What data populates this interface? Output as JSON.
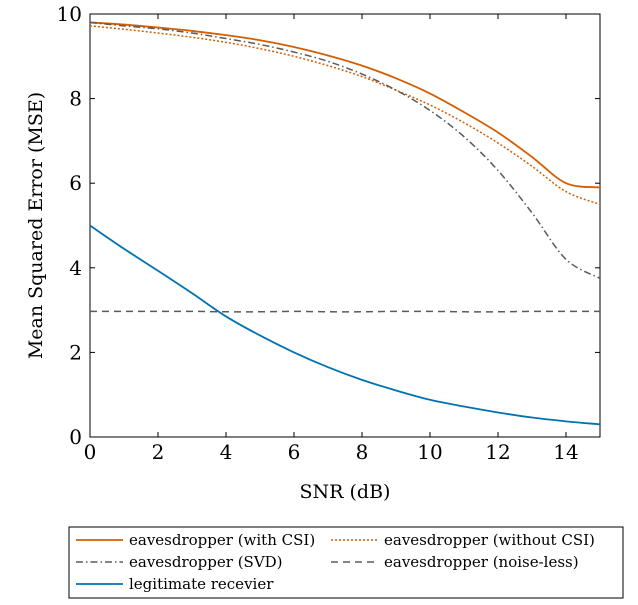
{
  "chart_data": {
    "type": "line",
    "title": "",
    "xlabel": "SNR (dB)",
    "ylabel": "Mean Squared Error (MSE)",
    "xlim": [
      0,
      15
    ],
    "ylim": [
      0,
      10
    ],
    "xticks": [
      0,
      2,
      4,
      6,
      8,
      10,
      12,
      14
    ],
    "yticks": [
      0,
      2,
      4,
      6,
      8,
      10
    ],
    "grid": false,
    "legend_position": "below",
    "x": [
      0,
      1,
      2,
      3,
      4,
      5,
      6,
      7,
      8,
      9,
      10,
      11,
      12,
      13,
      14,
      15
    ],
    "series": [
      {
        "name": "eavesdropper (with CSI)",
        "color": "#d55e00",
        "style": "solid",
        "values": [
          9.8,
          9.75,
          9.68,
          9.6,
          9.5,
          9.38,
          9.22,
          9.02,
          8.78,
          8.48,
          8.12,
          7.68,
          7.2,
          6.62,
          6.0,
          5.9
        ]
      },
      {
        "name": "eavesdropper (without CSI)",
        "color": "#d55e00",
        "style": "dotted",
        "values": [
          9.72,
          9.64,
          9.55,
          9.45,
          9.33,
          9.18,
          9.0,
          8.78,
          8.52,
          8.2,
          7.85,
          7.43,
          6.95,
          6.4,
          5.8,
          5.5
        ]
      },
      {
        "name": "eavesdropper (SVD)",
        "color": "#5a5a5a",
        "style": "dashdot",
        "values": [
          9.8,
          9.72,
          9.65,
          9.55,
          9.42,
          9.28,
          9.1,
          8.88,
          8.58,
          8.2,
          7.72,
          7.1,
          6.3,
          5.3,
          4.2,
          3.75
        ]
      },
      {
        "name": "eavesdropper (noise-less)",
        "color": "#5a5a5a",
        "style": "dashed",
        "values": [
          2.97,
          2.97,
          2.97,
          2.97,
          2.96,
          2.96,
          2.97,
          2.96,
          2.96,
          2.97,
          2.97,
          2.96,
          2.96,
          2.97,
          2.97,
          2.97
        ]
      },
      {
        "name": "legitimate recevier",
        "color": "#0072b2",
        "style": "solid",
        "values": [
          5.0,
          4.45,
          3.93,
          3.4,
          2.85,
          2.4,
          2.0,
          1.65,
          1.35,
          1.1,
          0.88,
          0.72,
          0.58,
          0.46,
          0.37,
          0.3
        ]
      }
    ]
  }
}
